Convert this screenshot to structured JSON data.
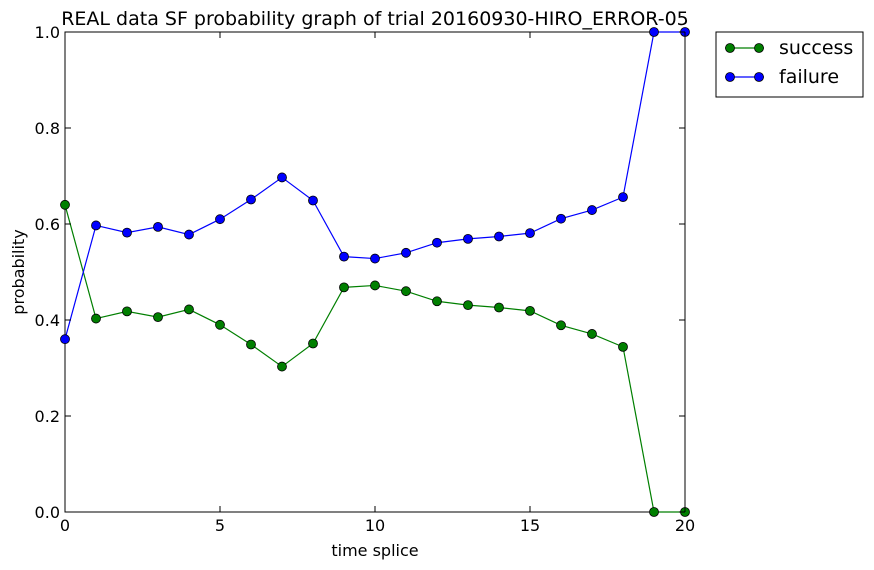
{
  "chart_data": {
    "type": "line",
    "title": "REAL data SF probability graph of trial 20160930-HIRO_ERROR-05",
    "xlabel": "time splice",
    "ylabel": "probability",
    "xlim": [
      0,
      20
    ],
    "ylim": [
      0,
      1
    ],
    "xticks": [
      "0",
      "5",
      "10",
      "15",
      "20"
    ],
    "yticks": [
      "0.0",
      "0.2",
      "0.4",
      "0.6",
      "0.8",
      "1.0"
    ],
    "xtick_values": [
      0,
      5,
      10,
      15,
      20
    ],
    "ytick_values": [
      0,
      0.2,
      0.4,
      0.6,
      0.8,
      1.0
    ],
    "grid": false,
    "legend_position": "outside-top-right",
    "x": [
      0,
      1,
      2,
      3,
      4,
      5,
      6,
      7,
      8,
      9,
      10,
      11,
      12,
      13,
      14,
      15,
      16,
      17,
      18,
      19,
      20
    ],
    "series": [
      {
        "name": "success",
        "color": "#007f00",
        "marker": "circle",
        "values": [
          0.64,
          0.403,
          0.418,
          0.406,
          0.422,
          0.39,
          0.349,
          0.303,
          0.351,
          0.468,
          0.472,
          0.46,
          0.439,
          0.431,
          0.426,
          0.419,
          0.389,
          0.371,
          0.344,
          0.0,
          0.0
        ]
      },
      {
        "name": "failure",
        "color": "#0000ff",
        "marker": "circle",
        "values": [
          0.36,
          0.597,
          0.582,
          0.594,
          0.578,
          0.61,
          0.651,
          0.697,
          0.649,
          0.532,
          0.528,
          0.54,
          0.561,
          0.569,
          0.574,
          0.581,
          0.611,
          0.629,
          0.656,
          1.0,
          1.0
        ]
      }
    ]
  }
}
